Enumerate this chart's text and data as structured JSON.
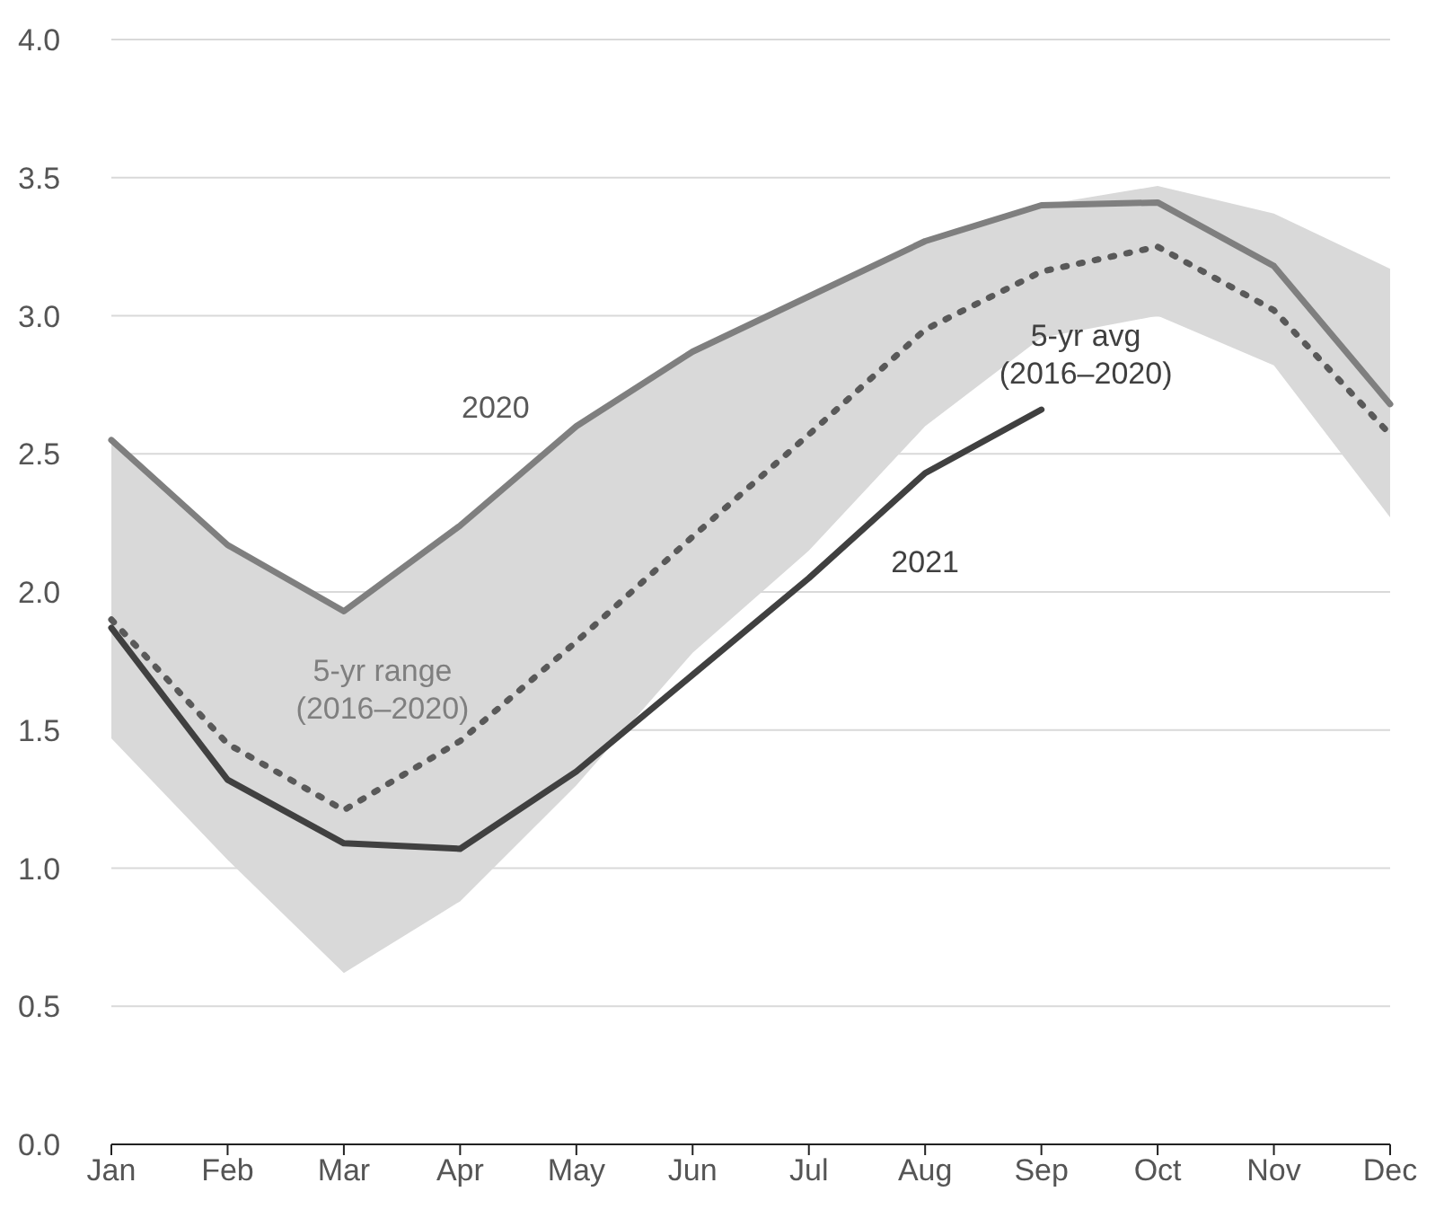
{
  "chart_data": {
    "type": "line",
    "categories": [
      "Jan",
      "Feb",
      "Mar",
      "Apr",
      "May",
      "Jun",
      "Jul",
      "Aug",
      "Sep",
      "Oct",
      "Nov",
      "Dec"
    ],
    "series": [
      {
        "name": "5-yr avg (2016–2020)",
        "color": "#595959",
        "line_style": "dotted",
        "values": [
          1.9,
          1.45,
          1.21,
          1.46,
          1.82,
          2.2,
          2.57,
          2.95,
          3.16,
          3.25,
          3.02,
          2.57
        ],
        "lower": [
          1.47,
          1.03,
          0.62,
          0.88,
          1.3,
          1.78,
          2.15,
          2.6,
          2.92,
          3.0,
          2.82,
          2.27
        ],
        "upper": [
          2.55,
          2.17,
          1.93,
          2.24,
          2.6,
          2.87,
          3.07,
          3.27,
          3.4,
          3.47,
          3.37,
          3.17
        ]
      },
      {
        "name": "2020",
        "color": "#7f7f7f",
        "line_style": "solid",
        "values": [
          2.55,
          2.17,
          1.93,
          2.24,
          2.6,
          2.87,
          3.07,
          3.27,
          3.4,
          3.41,
          3.18,
          2.68
        ]
      },
      {
        "name": "2021",
        "color": "#404040",
        "line_style": "solid",
        "values": [
          1.87,
          1.32,
          1.09,
          1.07,
          1.35,
          1.7,
          2.05,
          2.43,
          2.66,
          null,
          null,
          null
        ]
      }
    ],
    "annotations": [
      "5-yr range (2016–2020)"
    ],
    "ylim": [
      0,
      4
    ],
    "yticks": [
      {
        "value": 0,
        "label": "0.0"
      },
      0.5,
      {
        "value": 1,
        "label": "1.0"
      },
      1.5,
      {
        "value": 2,
        "label": "2.0"
      },
      2.5,
      {
        "value": 3,
        "label": "3.0"
      },
      3.5,
      {
        "value": 4,
        "label": "4.0"
      }
    ],
    "grid": "y",
    "marker": "none"
  }
}
